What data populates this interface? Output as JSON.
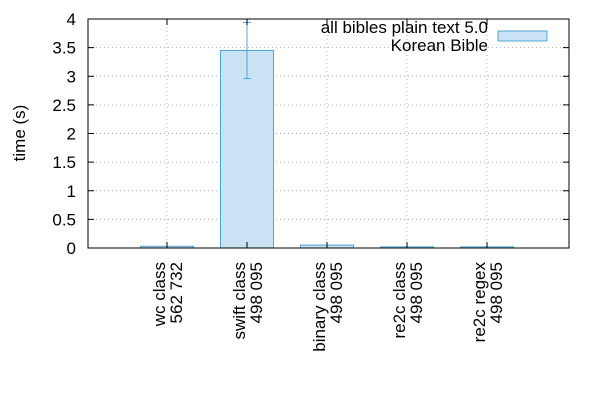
{
  "chart_data": {
    "type": "bar",
    "title": "",
    "xlabel": "",
    "ylabel": "time (s)",
    "ylim": [
      0,
      4
    ],
    "yticks": [
      0,
      0.5,
      1,
      1.5,
      2,
      2.5,
      3,
      3.5,
      4
    ],
    "ytick_labels": [
      "0",
      "0.5",
      "1",
      "1.5",
      "2",
      "2.5",
      "3",
      "3.5",
      "4"
    ],
    "grid": true,
    "legend_position": "top-right",
    "categories": [
      [
        "wc class",
        "562 732"
      ],
      [
        "swift class",
        "498 095"
      ],
      [
        "binary class",
        "498 095"
      ],
      [
        "re2c class",
        "498 095"
      ],
      [
        "re2c regex",
        "498 095"
      ]
    ],
    "series": [
      {
        "name": "all bibles plain text 5.0 Korean Bible",
        "legend_lines": [
          "all bibles plain text 5.0",
          "Korean Bible"
        ],
        "color": "#c9e3f5",
        "edge_color": "#4ea6d6",
        "values": [
          0.03,
          3.45,
          0.05,
          0.02,
          0.02
        ],
        "error": [
          0.0,
          0.49,
          0.0,
          0.0,
          0.0
        ]
      }
    ]
  }
}
